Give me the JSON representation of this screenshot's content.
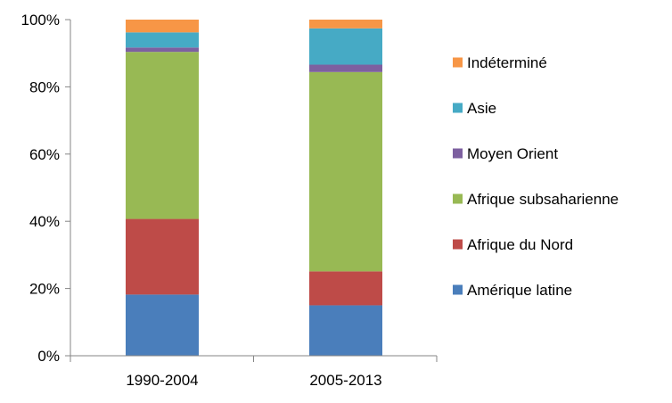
{
  "chart_data": {
    "type": "bar",
    "stacked": true,
    "normalized": true,
    "categories": [
      "1990-2004",
      "2005-2013"
    ],
    "ylim": [
      0,
      100
    ],
    "yticks": [
      0,
      20,
      40,
      60,
      80,
      100
    ],
    "ytick_labels": [
      "0%",
      "20%",
      "40%",
      "60%",
      "80%",
      "100%"
    ],
    "grid": false,
    "legend_position": "right",
    "series": [
      {
        "name": "Amérique latine",
        "color": "#4a7ebb",
        "values": [
          18.2,
          15.0
        ]
      },
      {
        "name": "Afrique du Nord",
        "color": "#be4b48",
        "values": [
          22.5,
          10.1
        ]
      },
      {
        "name": "Afrique subsaharienne",
        "color": "#98b954",
        "values": [
          49.7,
          59.3
        ]
      },
      {
        "name": "Moyen Orient",
        "color": "#7d60a0",
        "values": [
          1.3,
          2.2
        ]
      },
      {
        "name": "Asie",
        "color": "#46aac5",
        "values": [
          4.5,
          10.8
        ]
      },
      {
        "name": "Indéterminé",
        "color": "#f79646",
        "values": [
          3.8,
          2.6
        ]
      }
    ]
  }
}
